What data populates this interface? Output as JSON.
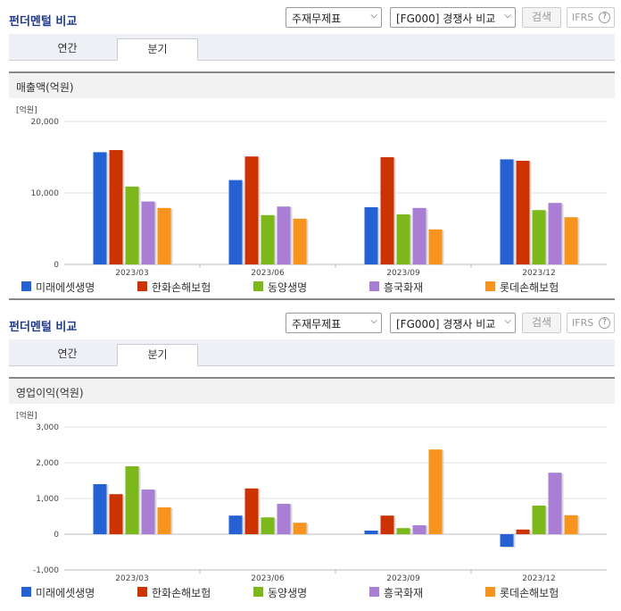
{
  "sections": [
    {
      "title": "펀더멘털 비교",
      "select_statement": "주재무제표",
      "select_peer": "[FG000] 경쟁사 비교",
      "search_label": "검색",
      "ifrs_label": "IFRS",
      "help_symbol": "?",
      "tabs": [
        "연간",
        "분기"
      ],
      "active_tab": "분기",
      "subtitle": "매출액(억원)",
      "chart_data": {
        "type": "bar",
        "title": "매출액(억원)",
        "ylabel": "[억원]",
        "categories": [
          "2023/03",
          "2023/06",
          "2023/09",
          "2023/12"
        ],
        "ylim": [
          0,
          20000
        ],
        "yticks": [
          0,
          10000,
          20000
        ],
        "ytick_labels": [
          "0",
          "10,000",
          "20,000"
        ],
        "series": [
          {
            "name": "미래에셋생명",
            "color": "#2462d4",
            "values": [
              15700,
              11800,
              8000,
              14700
            ]
          },
          {
            "name": "한화손해보험",
            "color": "#cc3300",
            "values": [
              16000,
              15100,
              15000,
              14500
            ]
          },
          {
            "name": "동양생명",
            "color": "#7cb81c",
            "values": [
              10900,
              6900,
              7000,
              7600
            ]
          },
          {
            "name": "흥국화재",
            "color": "#a97fd6",
            "values": [
              8800,
              8100,
              7900,
              8600
            ]
          },
          {
            "name": "롯데손해보험",
            "color": "#f7941d",
            "values": [
              7900,
              6400,
              4900,
              6600
            ]
          }
        ]
      }
    },
    {
      "title": "펀더멘털 비교",
      "select_statement": "주재무제표",
      "select_peer": "[FG000] 경쟁사 비교",
      "search_label": "검색",
      "ifrs_label": "IFRS",
      "help_symbol": "?",
      "tabs": [
        "연간",
        "분기"
      ],
      "active_tab": "분기",
      "subtitle": "영업이익(억원)",
      "chart_data": {
        "type": "bar",
        "title": "영업이익(억원)",
        "ylabel": "[억원]",
        "categories": [
          "2023/03",
          "2023/06",
          "2023/09",
          "2023/12"
        ],
        "ylim": [
          -1000,
          3000
        ],
        "yticks": [
          -1000,
          0,
          1000,
          2000,
          3000
        ],
        "ytick_labels": [
          "-1,000",
          "0",
          "1,000",
          "2,000",
          "3,000"
        ],
        "series": [
          {
            "name": "미래에셋생명",
            "color": "#2462d4",
            "values": [
              1400,
              520,
              100,
              -350
            ]
          },
          {
            "name": "한화손해보험",
            "color": "#cc3300",
            "values": [
              1120,
              1280,
              520,
              130
            ]
          },
          {
            "name": "동양생명",
            "color": "#7cb81c",
            "values": [
              1900,
              470,
              170,
              800
            ]
          },
          {
            "name": "흥국화재",
            "color": "#a97fd6",
            "values": [
              1250,
              850,
              250,
              1720
            ]
          },
          {
            "name": "롯데손해보험",
            "color": "#f7941d",
            "values": [
              750,
              320,
              2370,
              530
            ]
          }
        ]
      }
    }
  ]
}
